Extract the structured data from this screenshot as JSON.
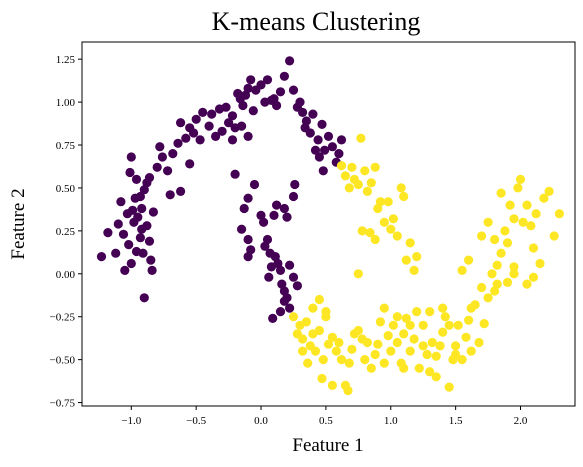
{
  "chart_data": {
    "type": "scatter",
    "title": "K-means Clustering",
    "xlabel": "Feature 1",
    "ylabel": "Feature 2",
    "xlim": [
      -1.38,
      2.42
    ],
    "ylim": [
      -0.77,
      1.35
    ],
    "xticks": [
      -1.0,
      -0.5,
      0.0,
      0.5,
      1.0,
      1.5,
      2.0
    ],
    "xtick_labels": [
      "−1.0",
      "−0.5",
      "0.0",
      "0.5",
      "1.0",
      "1.5",
      "2.0"
    ],
    "yticks": [
      -0.75,
      -0.5,
      -0.25,
      0.0,
      0.25,
      0.5,
      0.75,
      1.0,
      1.25
    ],
    "ytick_labels": [
      "−0.75",
      "−0.50",
      "−0.25",
      "0.00",
      "0.25",
      "0.50",
      "0.75",
      "1.00",
      "1.25"
    ],
    "grid": false,
    "legend": "none",
    "colors": {
      "cluster_0": "#440154",
      "cluster_1": "#fde725"
    },
    "series": [
      {
        "cluster": 0,
        "color": "#440154",
        "points": [
          [
            -1.23,
            0.1
          ],
          [
            -1.18,
            0.24
          ],
          [
            -1.12,
            0.12
          ],
          [
            -1.08,
            0.42
          ],
          [
            -1.06,
            0.23
          ],
          [
            -1.05,
            0.02
          ],
          [
            -1.03,
            0.35
          ],
          [
            -1.02,
            0.17
          ],
          [
            -1.0,
            0.06
          ],
          [
            -0.98,
            0.3
          ],
          [
            -0.96,
            0.13
          ],
          [
            -0.95,
            0.33
          ],
          [
            -0.93,
            0.21
          ],
          [
            -0.91,
            0.12
          ],
          [
            -0.9,
            -0.14
          ],
          [
            -0.88,
            0.28
          ],
          [
            -0.86,
            0.19
          ],
          [
            -0.85,
            0.08
          ],
          [
            -0.83,
            0.36
          ],
          [
            -0.9,
            0.49
          ],
          [
            -0.93,
            0.45
          ],
          [
            -0.96,
            0.55
          ],
          [
            -0.88,
            0.53
          ],
          [
            -0.86,
            0.56
          ],
          [
            -0.8,
            0.62
          ],
          [
            -0.78,
            0.74
          ],
          [
            -0.76,
            0.68
          ],
          [
            -0.72,
            0.6
          ],
          [
            -0.7,
            0.46
          ],
          [
            -0.68,
            0.7
          ],
          [
            -0.64,
            0.76
          ],
          [
            -0.62,
            0.88
          ],
          [
            -0.58,
            0.79
          ],
          [
            -0.55,
            0.85
          ],
          [
            -0.52,
            0.82
          ],
          [
            -0.5,
            0.9
          ],
          [
            -0.47,
            0.78
          ],
          [
            -0.45,
            0.94
          ],
          [
            -0.4,
            0.86
          ],
          [
            -0.38,
            0.93
          ],
          [
            -0.35,
            0.8
          ],
          [
            -0.32,
            0.96
          ],
          [
            -0.3,
            0.83
          ],
          [
            -0.27,
            0.97
          ],
          [
            -0.25,
            0.88
          ],
          [
            -0.22,
            0.92
          ],
          [
            -0.2,
            0.85
          ],
          [
            -0.18,
            1.05
          ],
          [
            -0.16,
            1.02
          ],
          [
            -0.14,
            0.98
          ],
          [
            -0.12,
            1.04
          ],
          [
            -0.1,
            1.08
          ],
          [
            -0.08,
            1.13
          ],
          [
            -0.06,
            0.95
          ],
          [
            -0.04,
            1.07
          ],
          [
            0.0,
            1.1
          ],
          [
            0.03,
            1.0
          ],
          [
            0.05,
            1.13
          ],
          [
            0.08,
            1.01
          ],
          [
            0.12,
            0.98
          ],
          [
            0.15,
            1.06
          ],
          [
            0.18,
            1.15
          ],
          [
            0.22,
            1.24
          ],
          [
            0.25,
            1.07
          ],
          [
            0.28,
            0.97
          ],
          [
            0.32,
            0.94
          ],
          [
            0.34,
            0.85
          ],
          [
            0.35,
            0.89
          ],
          [
            0.38,
            0.82
          ],
          [
            0.4,
            0.93
          ],
          [
            0.42,
            0.72
          ],
          [
            0.44,
            0.78
          ],
          [
            0.45,
            0.68
          ],
          [
            0.47,
            0.87
          ],
          [
            0.49,
            0.72
          ],
          [
            0.52,
            0.8
          ],
          [
            0.55,
            0.74
          ],
          [
            0.58,
            0.65
          ],
          [
            0.6,
            0.7
          ],
          [
            0.62,
            0.78
          ],
          [
            -1.0,
            0.68
          ],
          [
            -1.01,
            0.59
          ],
          [
            -0.97,
            0.44
          ],
          [
            -0.92,
            0.38
          ],
          [
            -0.99,
            0.37
          ],
          [
            -1.1,
            0.29
          ],
          [
            -0.92,
            0.26
          ],
          [
            -0.84,
            0.02
          ],
          [
            -0.62,
            0.48
          ],
          [
            -0.55,
            0.64
          ],
          [
            -0.22,
            0.78
          ],
          [
            -0.1,
            0.8
          ],
          [
            0.1,
            1.02
          ],
          [
            -0.05,
            0.52
          ],
          [
            -0.1,
            0.44
          ],
          [
            -0.13,
            0.38
          ],
          [
            -0.15,
            0.26
          ],
          [
            -0.1,
            0.2
          ],
          [
            -0.08,
            0.14
          ],
          [
            -0.1,
            0.1
          ],
          [
            0.0,
            0.34
          ],
          [
            0.02,
            0.3
          ],
          [
            0.05,
            0.2
          ],
          [
            0.03,
            0.16
          ],
          [
            0.07,
            0.12
          ],
          [
            0.08,
            0.04
          ],
          [
            0.06,
            -0.02
          ],
          [
            0.11,
            0.1
          ],
          [
            0.13,
            0.06
          ],
          [
            0.15,
            0.02
          ],
          [
            0.16,
            -0.06
          ],
          [
            0.18,
            -0.1
          ],
          [
            0.2,
            -0.14
          ],
          [
            0.22,
            -0.2
          ],
          [
            0.25,
            -0.02
          ],
          [
            0.28,
            -0.07
          ],
          [
            0.18,
            0.38
          ],
          [
            0.2,
            0.33
          ],
          [
            0.25,
            0.45
          ],
          [
            0.26,
            0.52
          ],
          [
            0.12,
            0.4
          ],
          [
            0.1,
            0.34
          ],
          [
            0.09,
            -0.26
          ],
          [
            0.15,
            -0.22
          ],
          [
            0.18,
            -0.16
          ],
          [
            0.22,
            0.05
          ],
          [
            -0.2,
            0.58
          ],
          [
            -0.15,
            0.86
          ],
          [
            0.3,
            1.0
          ],
          [
            0.48,
            0.6
          ]
        ]
      },
      {
        "cluster": 1,
        "color": "#fde725",
        "points": [
          [
            0.25,
            -0.25
          ],
          [
            0.3,
            -0.3
          ],
          [
            0.32,
            -0.38
          ],
          [
            0.35,
            -0.28
          ],
          [
            0.38,
            -0.42
          ],
          [
            0.4,
            -0.2
          ],
          [
            0.42,
            -0.45
          ],
          [
            0.45,
            -0.33
          ],
          [
            0.48,
            -0.5
          ],
          [
            0.5,
            -0.25
          ],
          [
            0.47,
            -0.61
          ],
          [
            0.52,
            -0.41
          ],
          [
            0.55,
            -0.37
          ],
          [
            0.58,
            -0.45
          ],
          [
            0.6,
            -0.4
          ],
          [
            0.62,
            -0.5
          ],
          [
            0.65,
            -0.65
          ],
          [
            0.67,
            -0.68
          ],
          [
            0.68,
            -0.52
          ],
          [
            0.7,
            -0.44
          ],
          [
            0.72,
            -0.35
          ],
          [
            0.75,
            -0.33
          ],
          [
            0.78,
            -0.38
          ],
          [
            0.8,
            -0.5
          ],
          [
            0.82,
            -0.4
          ],
          [
            0.85,
            -0.55
          ],
          [
            0.88,
            -0.47
          ],
          [
            0.9,
            -0.41
          ],
          [
            0.92,
            -0.28
          ],
          [
            0.95,
            -0.52
          ],
          [
            0.98,
            -0.36
          ],
          [
            1.0,
            -0.45
          ],
          [
            1.02,
            -0.3
          ],
          [
            1.05,
            -0.4
          ],
          [
            1.08,
            -0.52
          ],
          [
            1.1,
            -0.35
          ],
          [
            1.12,
            -0.26
          ],
          [
            1.15,
            -0.45
          ],
          [
            1.18,
            -0.38
          ],
          [
            1.2,
            -0.22
          ],
          [
            1.22,
            -0.55
          ],
          [
            1.25,
            -0.3
          ],
          [
            1.28,
            -0.47
          ],
          [
            1.3,
            -0.57
          ],
          [
            1.32,
            -0.4
          ],
          [
            1.35,
            -0.48
          ],
          [
            1.38,
            -0.42
          ],
          [
            1.4,
            -0.34
          ],
          [
            1.42,
            -0.25
          ],
          [
            1.45,
            -0.66
          ],
          [
            1.48,
            -0.5
          ],
          [
            1.5,
            -0.42
          ],
          [
            1.52,
            -0.3
          ],
          [
            1.55,
            -0.5
          ],
          [
            1.58,
            -0.37
          ],
          [
            1.6,
            -0.27
          ],
          [
            1.62,
            -0.45
          ],
          [
            1.65,
            -0.18
          ],
          [
            1.68,
            -0.4
          ],
          [
            1.7,
            -0.08
          ],
          [
            1.72,
            -0.29
          ],
          [
            1.75,
            -0.14
          ],
          [
            1.78,
            0.0
          ],
          [
            1.8,
            -0.1
          ],
          [
            1.82,
            0.05
          ],
          [
            1.85,
            0.12
          ],
          [
            1.88,
            0.25
          ],
          [
            1.9,
            0.18
          ],
          [
            1.92,
            0.4
          ],
          [
            1.95,
            0.32
          ],
          [
            1.98,
            0.5
          ],
          [
            2.0,
            0.55
          ],
          [
            2.02,
            0.3
          ],
          [
            2.05,
            0.4
          ],
          [
            2.08,
            0.28
          ],
          [
            2.1,
            0.15
          ],
          [
            2.12,
            0.35
          ],
          [
            2.15,
            0.06
          ],
          [
            2.18,
            0.44
          ],
          [
            2.22,
            0.48
          ],
          [
            2.26,
            0.22
          ],
          [
            2.3,
            0.35
          ],
          [
            0.62,
            0.63
          ],
          [
            0.65,
            0.57
          ],
          [
            0.68,
            0.5
          ],
          [
            0.7,
            0.62
          ],
          [
            0.72,
            0.55
          ],
          [
            0.75,
            0.52
          ],
          [
            0.77,
            0.79
          ],
          [
            0.8,
            0.6
          ],
          [
            0.82,
            0.48
          ],
          [
            0.85,
            0.53
          ],
          [
            0.88,
            0.62
          ],
          [
            0.9,
            0.38
          ],
          [
            0.92,
            0.42
          ],
          [
            0.95,
            0.3
          ],
          [
            0.98,
            0.42
          ],
          [
            1.0,
            0.26
          ],
          [
            1.02,
            0.32
          ],
          [
            1.05,
            0.22
          ],
          [
            1.08,
            0.5
          ],
          [
            1.1,
            0.45
          ],
          [
            1.12,
            0.08
          ],
          [
            1.15,
            0.18
          ],
          [
            1.18,
            0.02
          ],
          [
            1.2,
            0.1
          ],
          [
            0.84,
            0.24
          ],
          [
            0.88,
            0.2
          ],
          [
            0.78,
            0.25
          ],
          [
            0.75,
            0.0
          ],
          [
            1.75,
            0.3
          ],
          [
            1.8,
            0.2
          ],
          [
            1.7,
            0.22
          ],
          [
            1.6,
            0.08
          ],
          [
            1.55,
            0.02
          ],
          [
            1.82,
            -0.06
          ],
          [
            1.9,
            -0.05
          ],
          [
            1.95,
            0.0
          ],
          [
            2.05,
            -0.06
          ],
          [
            2.1,
            -0.02
          ],
          [
            1.85,
            0.47
          ],
          [
            1.95,
            0.04
          ],
          [
            1.62,
            -0.2
          ],
          [
            1.4,
            -0.2
          ],
          [
            1.1,
            -0.55
          ],
          [
            0.55,
            -0.65
          ],
          [
            0.32,
            -0.45
          ],
          [
            0.4,
            -0.35
          ],
          [
            0.45,
            -0.15
          ],
          [
            0.5,
            -0.22
          ],
          [
            1.3,
            -0.22
          ],
          [
            1.45,
            -0.3
          ],
          [
            1.25,
            -0.42
          ],
          [
            1.35,
            -0.6
          ],
          [
            1.05,
            -0.25
          ],
          [
            0.95,
            -0.2
          ],
          [
            1.15,
            -0.3
          ],
          [
            1.5,
            -0.47
          ],
          [
            0.28,
            -0.35
          ],
          [
            0.36,
            -0.52
          ]
        ]
      }
    ]
  }
}
